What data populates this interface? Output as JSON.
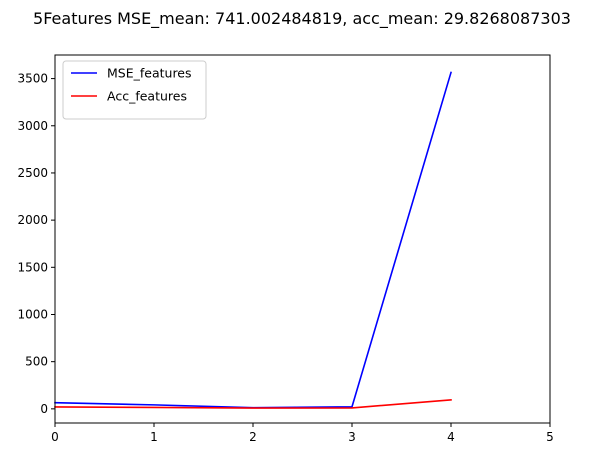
{
  "chart_data": {
    "type": "line",
    "title": "5Features MSE_mean: 741.002484819, acc_mean: 29.8268087303",
    "xlabel": "",
    "ylabel": "",
    "xlim": [
      0,
      5
    ],
    "ylim": [
      -150,
      3750
    ],
    "x_ticks": [
      "0",
      "1",
      "2",
      "3",
      "4",
      "5"
    ],
    "y_ticks": [
      "0",
      "500",
      "1000",
      "1500",
      "2000",
      "2500",
      "3000",
      "3500"
    ],
    "grid": false,
    "legend_position": "top-left",
    "series": [
      {
        "name": "MSE_features",
        "color": "#0000ff",
        "x": [
          0,
          1,
          2,
          3,
          4
        ],
        "values": [
          65,
          42,
          12,
          22,
          3565
        ]
      },
      {
        "name": "Acc_features",
        "color": "#ff0000",
        "x": [
          0,
          1,
          2,
          3,
          4
        ],
        "values": [
          20,
          15,
          8,
          10,
          95
        ]
      }
    ]
  }
}
